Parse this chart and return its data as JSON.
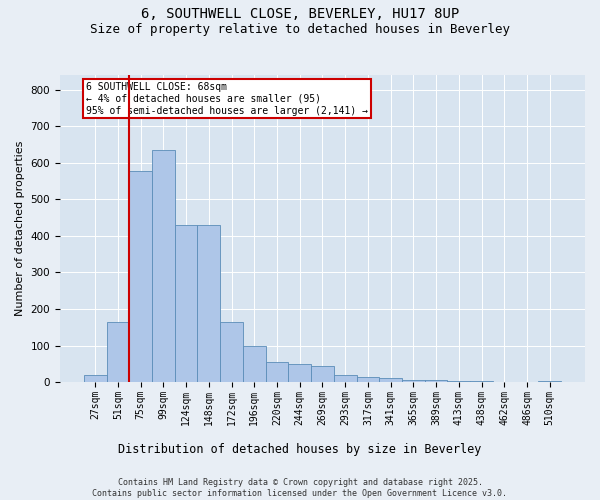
{
  "title1": "6, SOUTHWELL CLOSE, BEVERLEY, HU17 8UP",
  "title2": "Size of property relative to detached houses in Beverley",
  "xlabel": "Distribution of detached houses by size in Beverley",
  "ylabel": "Number of detached properties",
  "categories": [
    "27sqm",
    "51sqm",
    "75sqm",
    "99sqm",
    "124sqm",
    "148sqm",
    "172sqm",
    "196sqm",
    "220sqm",
    "244sqm",
    "269sqm",
    "293sqm",
    "317sqm",
    "341sqm",
    "365sqm",
    "389sqm",
    "413sqm",
    "438sqm",
    "462sqm",
    "486sqm",
    "510sqm"
  ],
  "values": [
    20,
    165,
    578,
    635,
    430,
    430,
    165,
    100,
    55,
    50,
    45,
    20,
    13,
    10,
    5,
    5,
    2,
    2,
    1,
    1,
    2
  ],
  "bar_color": "#aec6e8",
  "bar_edge_color": "#5b8db8",
  "vline_color": "#cc0000",
  "annotation_text": "6 SOUTHWELL CLOSE: 68sqm\n← 4% of detached houses are smaller (95)\n95% of semi-detached houses are larger (2,141) →",
  "annotation_box_color": "#ffffff",
  "annotation_box_edge": "#cc0000",
  "ylim": [
    0,
    840
  ],
  "yticks": [
    0,
    100,
    200,
    300,
    400,
    500,
    600,
    700,
    800
  ],
  "bg_color": "#e8eef5",
  "plot_bg_color": "#d8e4f0",
  "footer": "Contains HM Land Registry data © Crown copyright and database right 2025.\nContains public sector information licensed under the Open Government Licence v3.0.",
  "title_fontsize": 10,
  "subtitle_fontsize": 9,
  "tick_fontsize": 7,
  "xlabel_fontsize": 8.5,
  "ylabel_fontsize": 8,
  "footer_fontsize": 6
}
